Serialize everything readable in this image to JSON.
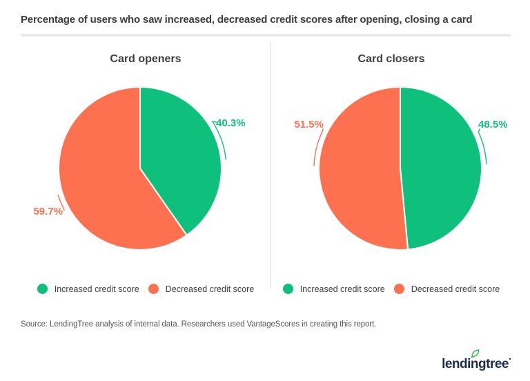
{
  "title": "Percentage of users who saw increased, decreased credit scores after opening, closing a card",
  "chart_data": [
    {
      "type": "pie",
      "title": "Card openers",
      "slices": [
        {
          "label": "Increased credit score",
          "value": 40.3,
          "display": "40.3%",
          "color": "#0fbf7c"
        },
        {
          "label": "Decreased credit score",
          "value": 59.7,
          "display": "59.7%",
          "color": "#fd7150"
        }
      ],
      "legend_position": "bottom"
    },
    {
      "type": "pie",
      "title": "Card closers",
      "slices": [
        {
          "label": "Increased credit score",
          "value": 48.5,
          "display": "48.5%",
          "color": "#0fbf7c"
        },
        {
          "label": "Decreased credit score",
          "value": 51.5,
          "display": "51.5%",
          "color": "#fd7150"
        }
      ],
      "legend_position": "bottom"
    }
  ],
  "source": "Source: LendingTree analysis of internal data. Researchers used VantageScores in creating this report.",
  "logo": {
    "pre": "lendi",
    "mid": "ng",
    "post": "tree",
    "navy": "#1b2c49",
    "leaf_green": "#2fc24b"
  }
}
